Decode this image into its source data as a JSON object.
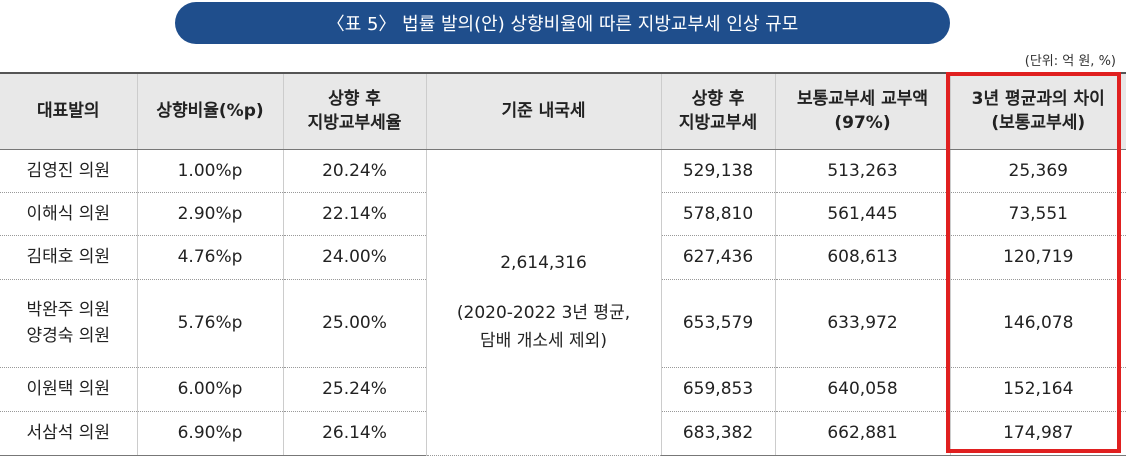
{
  "title": "〈표 5〉 법률 발의(안) 상향비율에 따른 지방교부세 인상 규모",
  "unit": "(단위: 억 원, %)",
  "headers": [
    "대표발의",
    "상향비율(%p)",
    "상향 후\n지방교부세율",
    "기준 내국세",
    "상향 후\n지방교부세",
    "보통교부세 교부액\n(97%)",
    "3년 평균과의 차이\n(보통교부세)"
  ],
  "base_tax": "2,614,316",
  "base_note": "(2020-2022 3년 평균,\n담배 개소세 제외)",
  "rows": [
    {
      "rep": "김영진 의원",
      "rate": "1.00%p",
      "after": "20.24%",
      "tax": "529,138",
      "grant": "513,263",
      "diff": "25,369"
    },
    {
      "rep": "이해식 의원",
      "rate": "2.90%p",
      "after": "22.14%",
      "tax": "578,810",
      "grant": "561,445",
      "diff": "73,551"
    },
    {
      "rep": "김태호 의원",
      "rate": "4.76%p",
      "after": "24.00%",
      "tax": "627,436",
      "grant": "608,613",
      "diff": "120,719"
    },
    {
      "rep": "박완주 의원\n양경숙 의원",
      "rate": "5.76%p",
      "after": "25.00%",
      "tax": "653,579",
      "grant": "633,972",
      "diff": "146,078"
    },
    {
      "rep": "이원택 의원",
      "rate": "6.00%p",
      "after": "25.24%",
      "tax": "659,853",
      "grant": "640,058",
      "diff": "152,164"
    },
    {
      "rep": "서삼석 의원",
      "rate": "6.90%p",
      "after": "26.14%",
      "tax": "683,382",
      "grant": "662,881",
      "diff": "174,987"
    }
  ]
}
